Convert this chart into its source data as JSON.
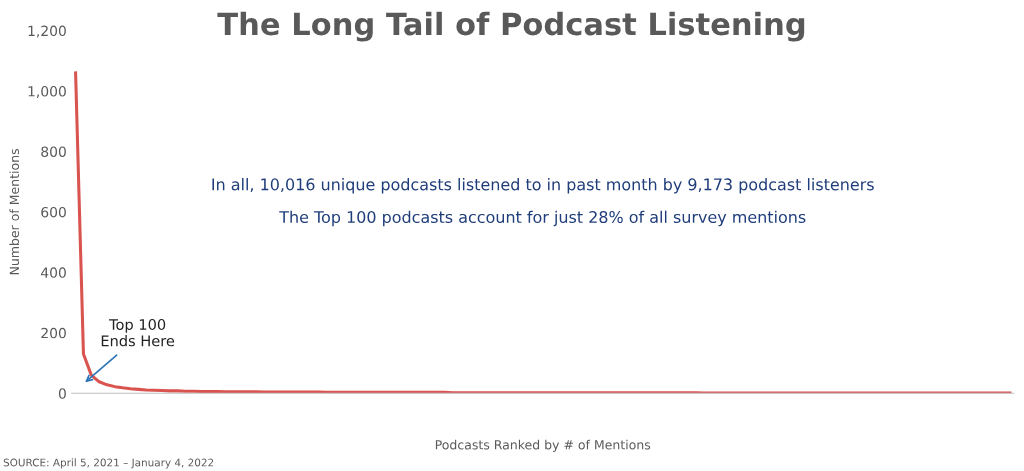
{
  "chart_data": {
    "type": "line",
    "title": "The Long Tail of Podcast Listening",
    "xlabel": "Podcasts Ranked by # of Mentions",
    "ylabel": "Number of Mentions",
    "categories": [
      null,
      null,
      null,
      null,
      null,
      null,
      null,
      null,
      null,
      null,
      null,
      null,
      null,
      null,
      null,
      null,
      null,
      null,
      null,
      null,
      null,
      null,
      null,
      null,
      null,
      null,
      null,
      null,
      null,
      null,
      null,
      null,
      null,
      null,
      null,
      null,
      null,
      null,
      null,
      null,
      null,
      null,
      null,
      null,
      null,
      null,
      null,
      null,
      null,
      null,
      null,
      null,
      null,
      null,
      null,
      null,
      null,
      null,
      null,
      null,
      null,
      null,
      null,
      null,
      null,
      null,
      null,
      null,
      null,
      null,
      null,
      null,
      null,
      null,
      null,
      null,
      null,
      null,
      null,
      null,
      null,
      null,
      null,
      null,
      null,
      null,
      null,
      null,
      null,
      null,
      null,
      null,
      null,
      null,
      null,
      null,
      null,
      null,
      null,
      null,
      null,
      null,
      null,
      null,
      null,
      null,
      null,
      null,
      null,
      null,
      null,
      null,
      null,
      null,
      null,
      null,
      null,
      null,
      null,
      null
    ],
    "series": [
      {
        "color": "#d9534f",
        "values": [
          1060,
          130,
          60,
          38,
          28,
          22,
          18,
          15,
          13,
          11,
          10,
          9,
          8,
          8,
          7,
          7,
          6,
          6,
          6,
          5,
          5,
          5,
          5,
          5,
          4,
          4,
          4,
          4,
          4,
          4,
          4,
          4,
          3,
          3,
          3,
          3,
          3,
          3,
          3,
          3,
          3,
          3,
          3,
          3,
          3,
          3,
          3,
          3,
          2,
          2,
          2,
          2,
          2,
          2,
          2,
          2,
          2,
          2,
          2,
          2,
          2,
          2,
          2,
          2,
          2,
          2,
          2,
          2,
          2,
          2,
          2,
          2,
          2,
          2,
          2,
          2,
          2,
          2,
          2,
          2,
          1,
          1,
          1,
          1,
          1,
          1,
          1,
          1,
          1,
          1,
          1,
          1,
          1,
          1,
          1,
          1,
          1,
          1,
          1,
          1,
          1,
          1,
          1,
          1,
          1,
          1,
          1,
          1,
          1,
          1,
          1,
          1,
          1,
          1,
          1,
          1,
          1,
          1,
          1,
          1
        ]
      }
    ],
    "ylim": [
      0,
      1200
    ],
    "yticks": [
      {
        "value": 0,
        "label": "0"
      },
      {
        "value": 200,
        "label": "200"
      },
      {
        "value": 400,
        "label": "400"
      },
      {
        "value": 600,
        "label": "600"
      },
      {
        "value": 800,
        "label": "800"
      },
      {
        "value": 1000,
        "label": "1,000"
      },
      {
        "value": 1200,
        "label": "1,200"
      }
    ],
    "grid": false,
    "legend": false,
    "marker": "none",
    "line_style": "solid",
    "annotations": [
      "In all, 10,016 unique podcasts listened to in past month by 9,173 podcast listeners",
      "The Top 100 podcasts account for just 28% of all survey mentions",
      "Top 100\nEnds Here",
      "SOURCE: April 5, 2021 – January 4, 2022"
    ]
  }
}
